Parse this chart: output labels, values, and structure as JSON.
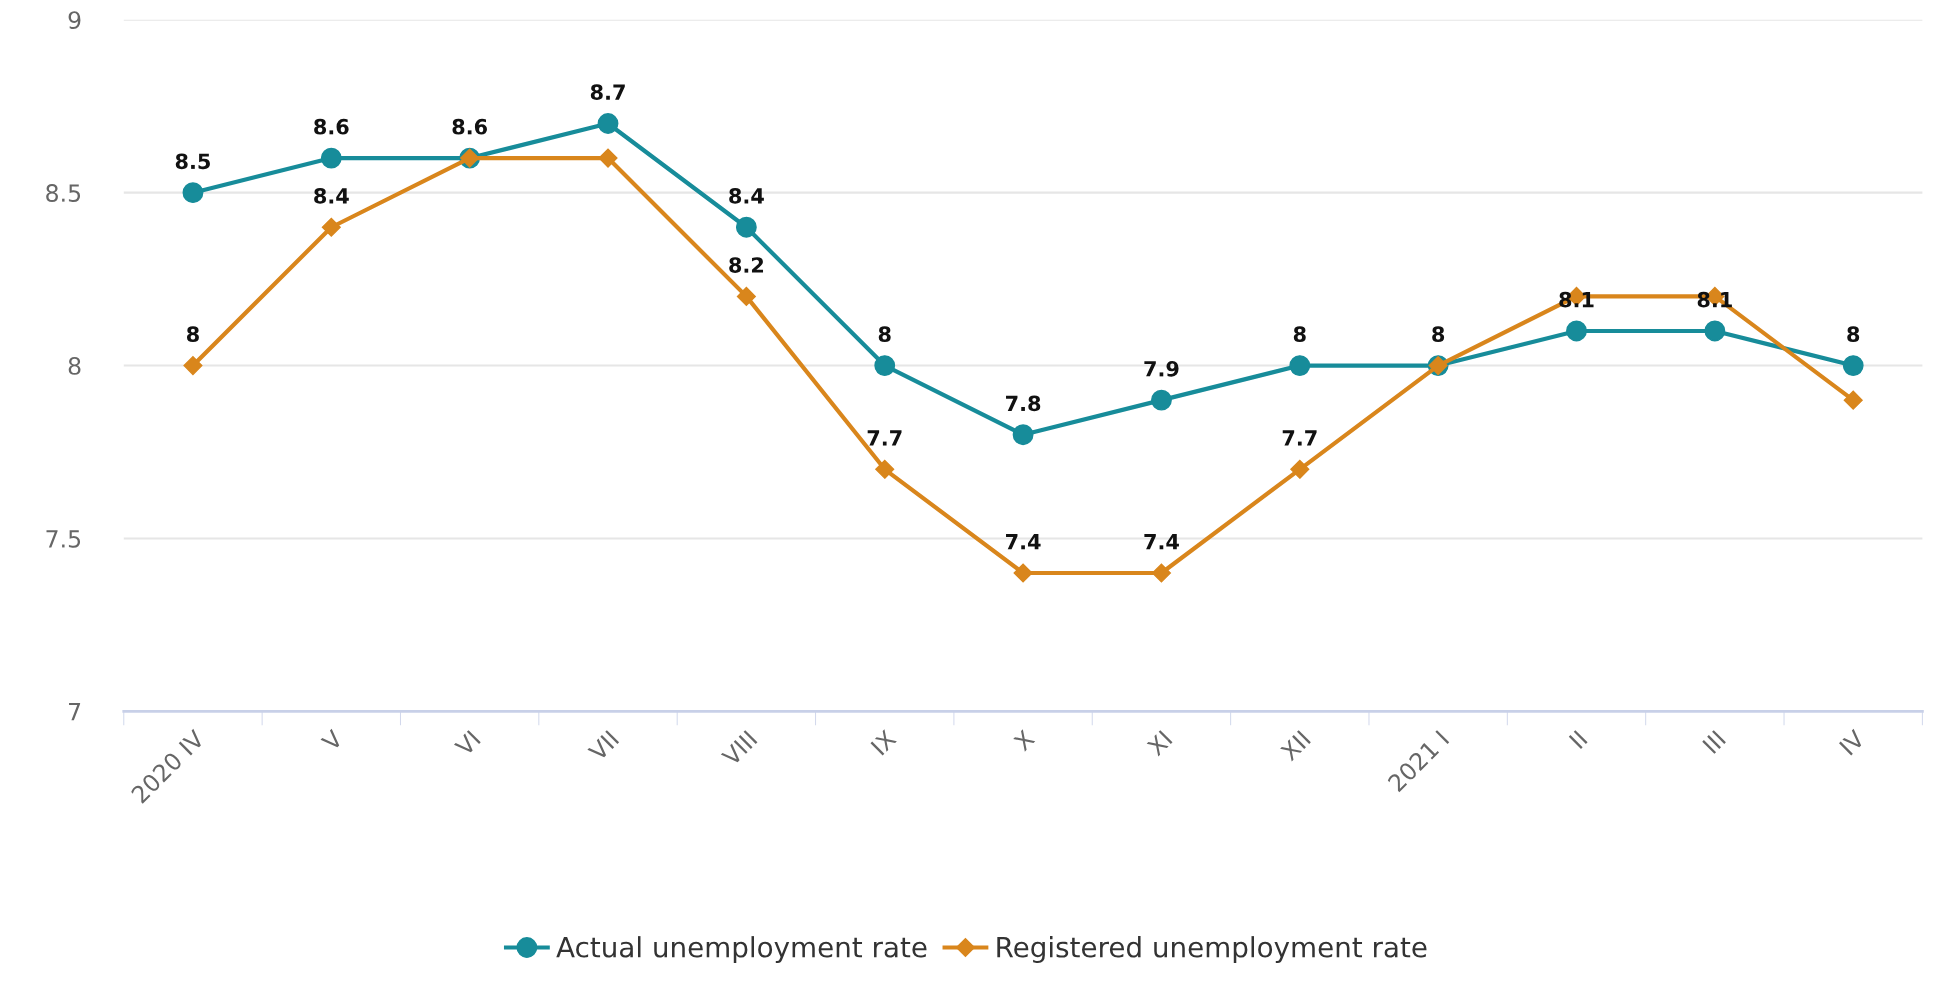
{
  "chart_data": {
    "type": "line",
    "categories": [
      "2020 IV",
      "V",
      "VI",
      "VII",
      "VIII",
      "IX",
      "X",
      "XI",
      "XII",
      "2021 I",
      "II",
      "III",
      "IV"
    ],
    "series": [
      {
        "name": "Actual unemployment rate",
        "color": "#178c9a",
        "marker": "circle",
        "values": [
          8.5,
          8.6,
          8.6,
          8.7,
          8.4,
          8.0,
          7.8,
          7.9,
          8.0,
          8.0,
          8.1,
          8.1,
          8.0
        ],
        "value_labels": [
          "8.5",
          "8.6",
          "8.6",
          "8.7",
          "8.4",
          "8",
          "7.8",
          "7.9",
          "8",
          "8",
          "8.1",
          "8.1",
          "8"
        ]
      },
      {
        "name": "Registered unemployment rate",
        "color": "#d9861c",
        "marker": "diamond",
        "values": [
          8.0,
          8.4,
          8.6,
          8.6,
          8.2,
          7.7,
          7.4,
          7.4,
          7.7,
          8.0,
          8.2,
          8.2,
          7.9
        ],
        "value_labels": [
          "8",
          "8.4",
          null,
          null,
          "8.2",
          "7.7",
          "7.4",
          "7.4",
          "7.7",
          null,
          null,
          null,
          null
        ]
      }
    ],
    "ylim": [
      7,
      9
    ],
    "yticks": [
      7,
      7.5,
      8,
      8.5,
      9
    ],
    "grid": "y",
    "legend": "bottom",
    "line_style": "solid"
  }
}
